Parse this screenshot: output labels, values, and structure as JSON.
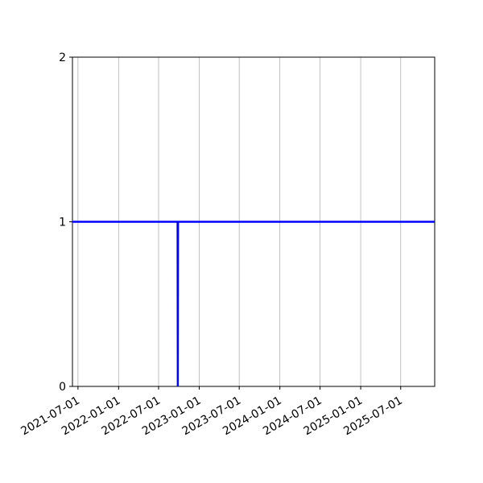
{
  "figure": {
    "background_color": "#ffffff",
    "title": ""
  },
  "chart_data": {
    "type": "line",
    "title": "",
    "xlabel": "",
    "ylabel": "",
    "legend": "none",
    "grid": "vertical-only",
    "grid_color": "#b0b0b0",
    "spine_color": "#000000",
    "tick_label_color": "#000000",
    "line_color": "#0000ff",
    "x_tick_labels": [
      "2021-07-01",
      "2022-01-01",
      "2022-07-01",
      "2023-01-01",
      "2023-07-01",
      "2024-01-01",
      "2024-07-01",
      "2025-01-01",
      "2025-07-01"
    ],
    "x_tick_rotation_deg": 30,
    "y_tick_labels": [
      "0",
      "1",
      "2"
    ],
    "y_tick_values": [
      0,
      1,
      2
    ],
    "ylim": [
      0,
      2
    ],
    "xlim": [
      "2021-06-06",
      "2025-12-02"
    ],
    "series": [
      {
        "name": "value",
        "points": [
          {
            "date": "2021-06-06",
            "value": 1
          },
          {
            "date": "2022-09-25",
            "value": 1
          },
          {
            "date": "2022-09-26",
            "value": 0
          },
          {
            "date": "2022-09-27",
            "value": 1
          },
          {
            "date": "2025-12-02",
            "value": 1
          }
        ]
      }
    ]
  }
}
